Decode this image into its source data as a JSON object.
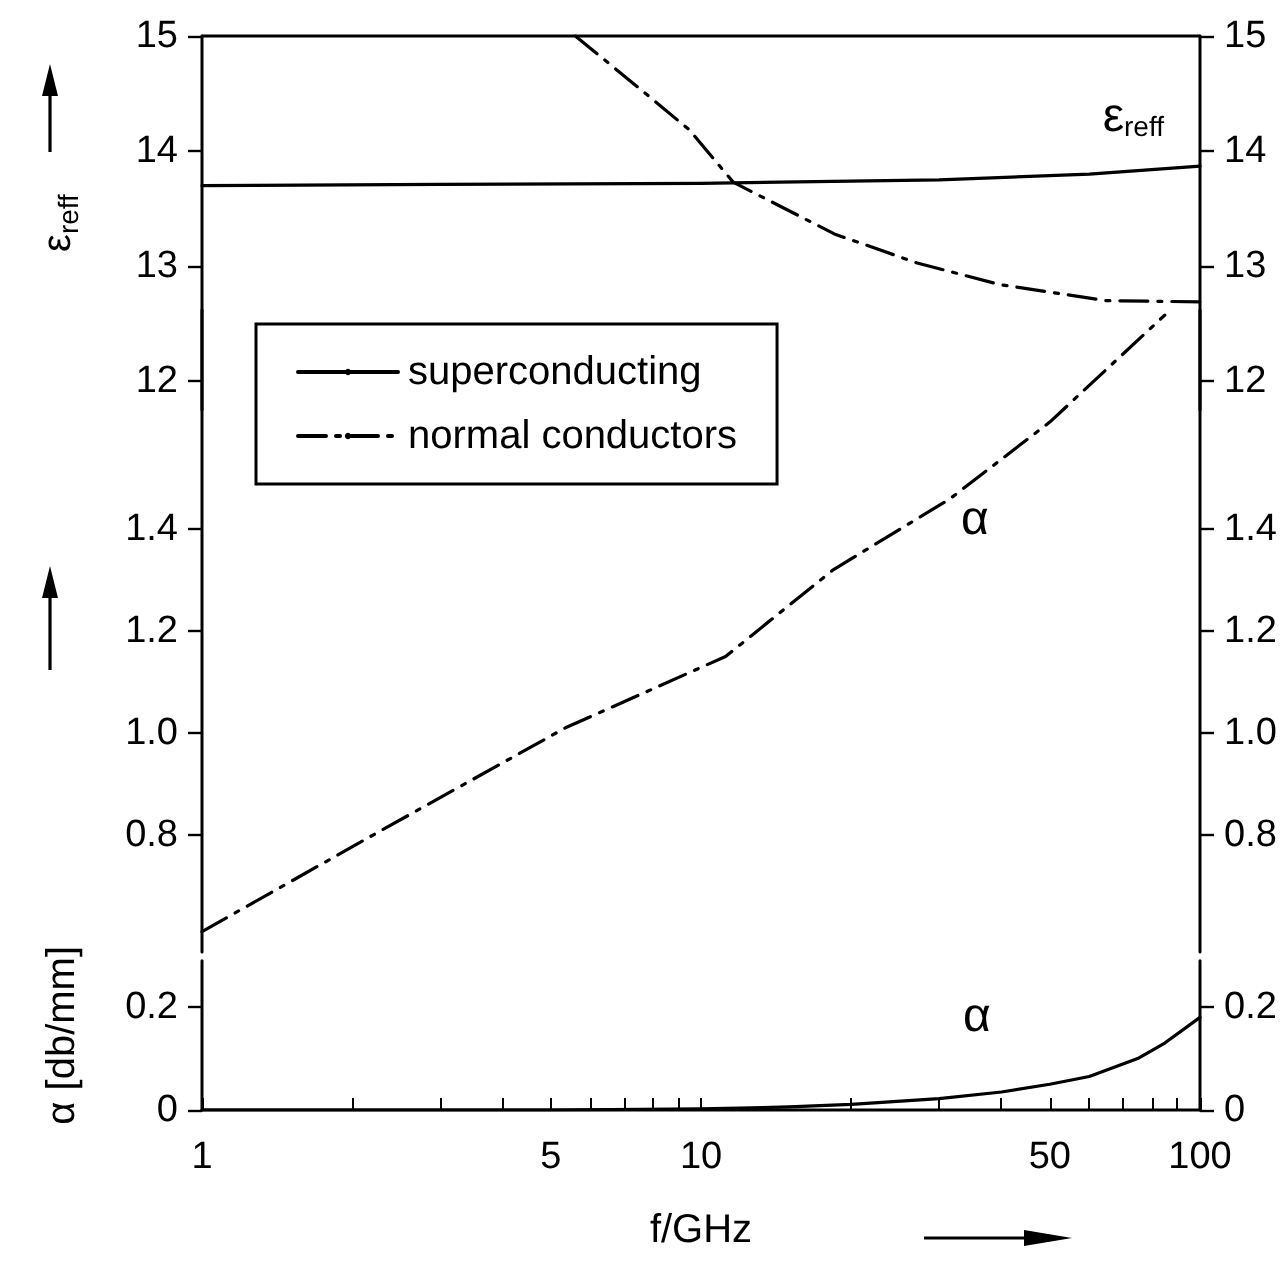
{
  "chart_data": [
    {
      "type": "line",
      "ylabel": "ε$_{reff}$",
      "xlim": [
        1,
        100
      ],
      "ylim": [
        11.75,
        15
      ],
      "yticks": [
        12,
        13,
        14,
        15
      ],
      "y2lim": [
        11.75,
        15
      ],
      "y2ticks": [
        12,
        13,
        14,
        15
      ],
      "log": "x",
      "grid": false,
      "tick_labels": "y",
      "legend": "bottom left",
      "annotations": [
        "ε$_{reff}$"
      ],
      "series": [
        {
          "name": "superconducting",
          "color": "#000000",
          "line_style": "solid",
          "x": [
            1,
            3,
            10,
            30,
            60,
            100
          ],
          "values": [
            13.7,
            13.71,
            13.72,
            13.75,
            13.8,
            13.87
          ]
        },
        {
          "name": "normal conductors",
          "color": "#000000",
          "line_style": "dashed",
          "x": [
            5.6,
            7.5,
            9.5,
            11.6,
            18.5,
            27,
            39.7,
            65,
            100
          ],
          "values": [
            15,
            14.55,
            14.18,
            13.73,
            13.28,
            13.03,
            12.84,
            12.7,
            12.69
          ]
        }
      ]
    },
    {
      "type": "line",
      "xlim": [
        1,
        100
      ],
      "ylim": [
        0.57,
        1.83
      ],
      "yticks": [
        0.8,
        {
          "value": 1,
          "label": "1.0"
        },
        1.2,
        1.4
      ],
      "y2lim": [
        0.57,
        1.83
      ],
      "y2ticks": [
        0.8,
        {
          "value": 1,
          "label": "1.0"
        },
        1.2,
        1.4
      ],
      "log": "x",
      "grid": false,
      "tick_labels": "y",
      "annotations": [
        {
          "text": "α",
          "x": 32,
          "y": 1.46
        }
      ],
      "series": [
        {
          "color": "#000000",
          "line_style": "dashed",
          "x": [
            1,
            2.3,
            5.35,
            11.2,
            18.4,
            31.6,
            50,
            85
          ],
          "values": [
            0.61,
            0.81,
            1.01,
            1.15,
            1.32,
            1.46,
            1.61,
            1.82
          ]
        }
      ]
    },
    {
      "type": "line",
      "xlabel": "f/GHz",
      "ylabel": "α [db/mm]",
      "xlim": [
        1,
        100
      ],
      "xticks": [
        1,
        {
          "value": 2,
          "label": null
        },
        {
          "value": 3,
          "label": null
        },
        {
          "value": 4,
          "label": null
        },
        5,
        {
          "value": 6,
          "label": null
        },
        {
          "value": 7,
          "label": null
        },
        {
          "value": 8,
          "label": null
        },
        {
          "value": 9,
          "label": null
        },
        10,
        {
          "value": 20,
          "label": null
        },
        {
          "value": 30,
          "label": null
        },
        {
          "value": 40,
          "label": null
        },
        50,
        {
          "value": 60,
          "label": null
        },
        {
          "value": 70,
          "label": null
        },
        {
          "value": 80,
          "label": null
        },
        {
          "value": 90,
          "label": null
        },
        100
      ],
      "ylim": [
        0,
        0.29
      ],
      "yticks": [
        0,
        0.2
      ],
      "y2lim": [
        0,
        0.29
      ],
      "y2ticks": [
        0,
        0.2
      ],
      "log": "x",
      "grid": false,
      "annotations": [
        {
          "text": "α",
          "x": 30,
          "y": 0.02
        }
      ],
      "series": [
        {
          "color": "#000000",
          "line_style": "solid",
          "x": [
            1,
            5,
            10,
            15,
            20,
            30,
            40,
            50,
            60,
            75,
            85,
            100
          ],
          "values": [
            0,
            0,
            0.002,
            0.006,
            0.011,
            0.022,
            0.035,
            0.05,
            0.065,
            0.1,
            0.13,
            0.18
          ]
        }
      ]
    }
  ]
}
